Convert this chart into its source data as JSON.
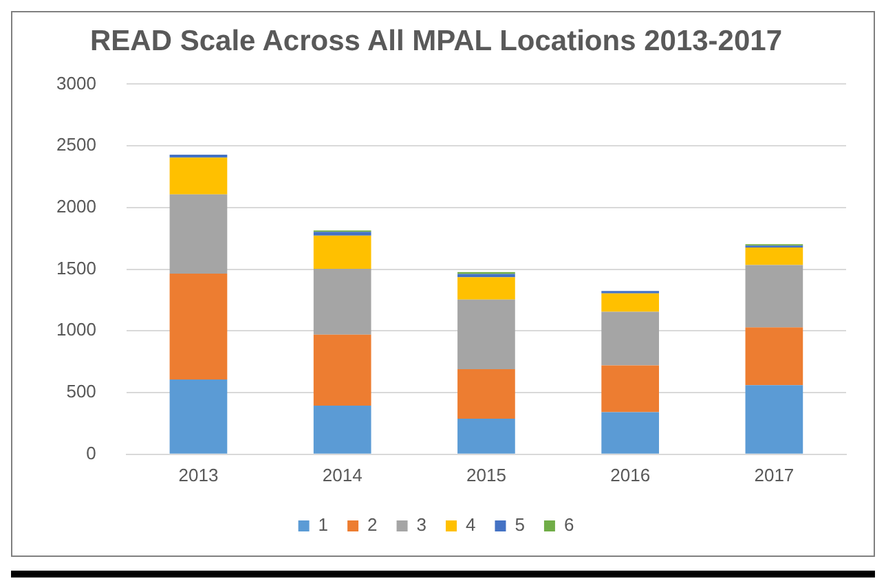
{
  "chart_data": {
    "type": "bar",
    "title": "READ Scale Across All MPAL Locations 2013-2017",
    "categories": [
      "2013",
      "2014",
      "2015",
      "2016",
      "2017"
    ],
    "stacked": true,
    "series": [
      {
        "name": "1",
        "color": "#5b9bd5",
        "values": [
          606,
          395,
          288,
          341,
          560
        ]
      },
      {
        "name": "2",
        "color": "#ed7d31",
        "values": [
          859,
          575,
          402,
          380,
          468
        ]
      },
      {
        "name": "3",
        "color": "#a5a5a5",
        "values": [
          641,
          534,
          564,
          434,
          506
        ]
      },
      {
        "name": "4",
        "color": "#ffc000",
        "values": [
          299,
          268,
          181,
          149,
          142
        ]
      },
      {
        "name": "5",
        "color": "#4472c4",
        "values": [
          23,
          31,
          26,
          19,
          16
        ]
      },
      {
        "name": "6",
        "color": "#70ad47",
        "values": [
          0,
          11,
          16,
          0,
          11
        ]
      }
    ],
    "ylim": [
      0,
      3000
    ],
    "yticks": [
      0,
      500,
      1000,
      1500,
      2000,
      2500,
      3000
    ],
    "grid": "y",
    "legend": "bottom"
  }
}
